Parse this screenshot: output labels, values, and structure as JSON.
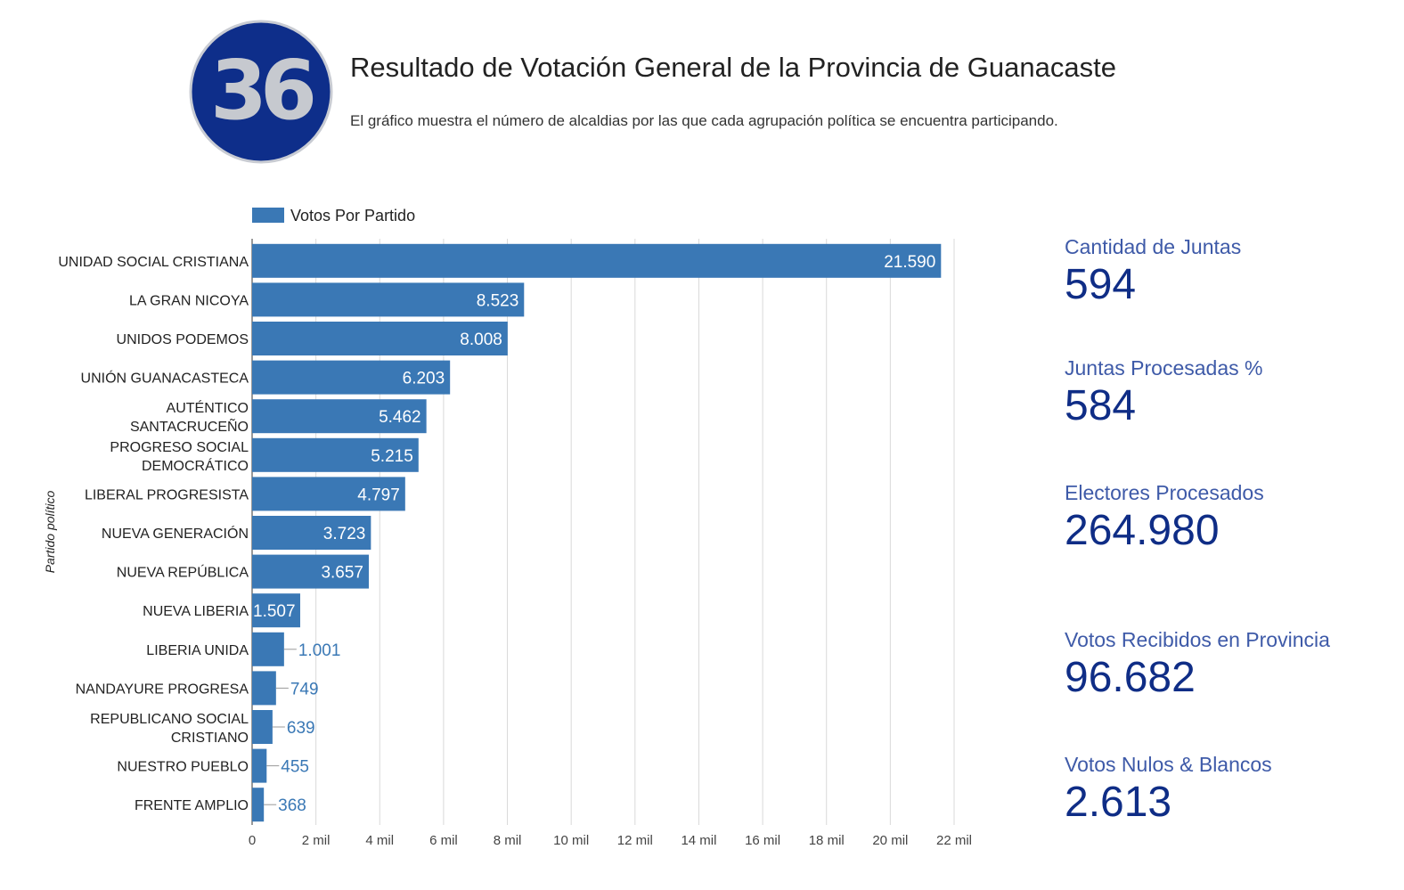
{
  "header": {
    "logo_text": "36",
    "title": "Resultado de Votación General de la Provincia de Guanacaste",
    "subtitle": "El gráfico muestra el número de alcaldias por las que cada agrupación política se encuentra participando."
  },
  "colors": {
    "bar": "#3a78b5",
    "logo_bg": "#0e2e8a",
    "stat_label": "#3e5aa8",
    "stat_value": "#0f2d86"
  },
  "chart_data": {
    "type": "bar",
    "orientation": "horizontal",
    "legend": {
      "label": "Votos Por Partido",
      "position": "top-left"
    },
    "ylabel": "Partido político",
    "xlim": [
      0,
      22000
    ],
    "x_ticks": [
      0,
      2000,
      4000,
      6000,
      8000,
      10000,
      12000,
      14000,
      16000,
      18000,
      20000,
      22000
    ],
    "x_tick_labels": [
      "0",
      "2 mil",
      "4 mil",
      "6 mil",
      "8 mil",
      "10 mil",
      "12 mil",
      "14 mil",
      "16 mil",
      "18 mil",
      "20 mil",
      "22 mil"
    ],
    "grid": true,
    "categories": [
      [
        "UNIDAD SOCIAL CRISTIANA"
      ],
      [
        "LA GRAN NICOYA"
      ],
      [
        "UNIDOS PODEMOS"
      ],
      [
        "UNIÓN GUANACASTECA"
      ],
      [
        "AUTÉNTICO",
        "SANTACRUCEÑO"
      ],
      [
        "PROGRESO SOCIAL",
        "DEMOCRÁTICO"
      ],
      [
        "LIBERAL PROGRESISTA"
      ],
      [
        "NUEVA GENERACIÓN"
      ],
      [
        "NUEVA REPÚBLICA"
      ],
      [
        "NUEVA LIBERIA"
      ],
      [
        "LIBERIA UNIDA"
      ],
      [
        "NANDAYURE PROGRESA"
      ],
      [
        "REPUBLICANO SOCIAL",
        "CRISTIANO"
      ],
      [
        "NUESTRO PUEBLO"
      ],
      [
        "FRENTE AMPLIO"
      ]
    ],
    "values": [
      21590,
      8523,
      8008,
      6203,
      5462,
      5215,
      4797,
      3723,
      3657,
      1507,
      1001,
      749,
      639,
      455,
      368
    ],
    "value_labels": [
      "21.590",
      "8.523",
      "8.008",
      "6.203",
      "5.462",
      "5.215",
      "4.797",
      "3.723",
      "3.657",
      "1.507",
      "1.001",
      "749",
      "639",
      "455",
      "368"
    ]
  },
  "stats": [
    {
      "label": "Cantidad de Juntas",
      "value": "594"
    },
    {
      "label": "Juntas Procesadas %",
      "value": "584"
    },
    {
      "label": "Electores Procesados",
      "value": "264.980"
    },
    {
      "label": "Votos Recibidos en Provincia",
      "value": "96.682"
    },
    {
      "label": "Votos Nulos & Blancos",
      "value": "2.613"
    }
  ]
}
